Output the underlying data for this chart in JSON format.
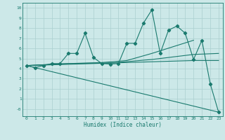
{
  "xlabel": "Humidex (Indice chaleur)",
  "ylabel": "",
  "xlim": [
    -0.5,
    23.5
  ],
  "ylim": [
    -0.7,
    10.5
  ],
  "xticks": [
    0,
    1,
    2,
    3,
    4,
    5,
    6,
    7,
    8,
    9,
    10,
    11,
    12,
    13,
    14,
    15,
    16,
    17,
    18,
    19,
    20,
    21,
    22,
    23
  ],
  "yticks": [
    0,
    1,
    2,
    3,
    4,
    5,
    6,
    7,
    8,
    9,
    10
  ],
  "ytick_labels": [
    "-0",
    "1",
    "2",
    "3",
    "4",
    "5",
    "6",
    "7",
    "8",
    "9",
    "10"
  ],
  "bg_color": "#cce8e8",
  "grid_color": "#aacfcf",
  "line_color": "#1a7a6e",
  "line_width": 0.8,
  "marker": "D",
  "marker_size": 2.2,
  "series": [
    {
      "x": [
        0,
        1,
        2,
        3,
        4,
        5,
        6,
        7,
        8,
        9,
        10,
        11,
        12,
        13,
        14,
        15,
        16,
        17,
        18,
        19,
        20,
        21,
        22,
        23
      ],
      "y": [
        4.3,
        4.1,
        4.3,
        4.5,
        4.5,
        5.5,
        5.5,
        7.5,
        5.1,
        4.5,
        4.45,
        4.5,
        6.5,
        6.5,
        8.5,
        9.8,
        5.5,
        7.8,
        8.2,
        7.5,
        4.9,
        6.8,
        2.5,
        -0.3
      ],
      "has_marker": true
    },
    {
      "x": [
        0,
        5,
        9,
        12,
        15,
        20
      ],
      "y": [
        4.3,
        4.5,
        4.6,
        4.8,
        5.5,
        6.8
      ],
      "has_marker": false
    },
    {
      "x": [
        0,
        5,
        10,
        15,
        20,
        23
      ],
      "y": [
        4.3,
        4.5,
        4.55,
        4.9,
        5.4,
        5.5
      ],
      "has_marker": false
    },
    {
      "x": [
        0,
        20,
        23
      ],
      "y": [
        4.3,
        4.8,
        4.8
      ],
      "has_marker": false
    },
    {
      "x": [
        0,
        23
      ],
      "y": [
        4.3,
        -0.3
      ],
      "has_marker": false
    }
  ]
}
